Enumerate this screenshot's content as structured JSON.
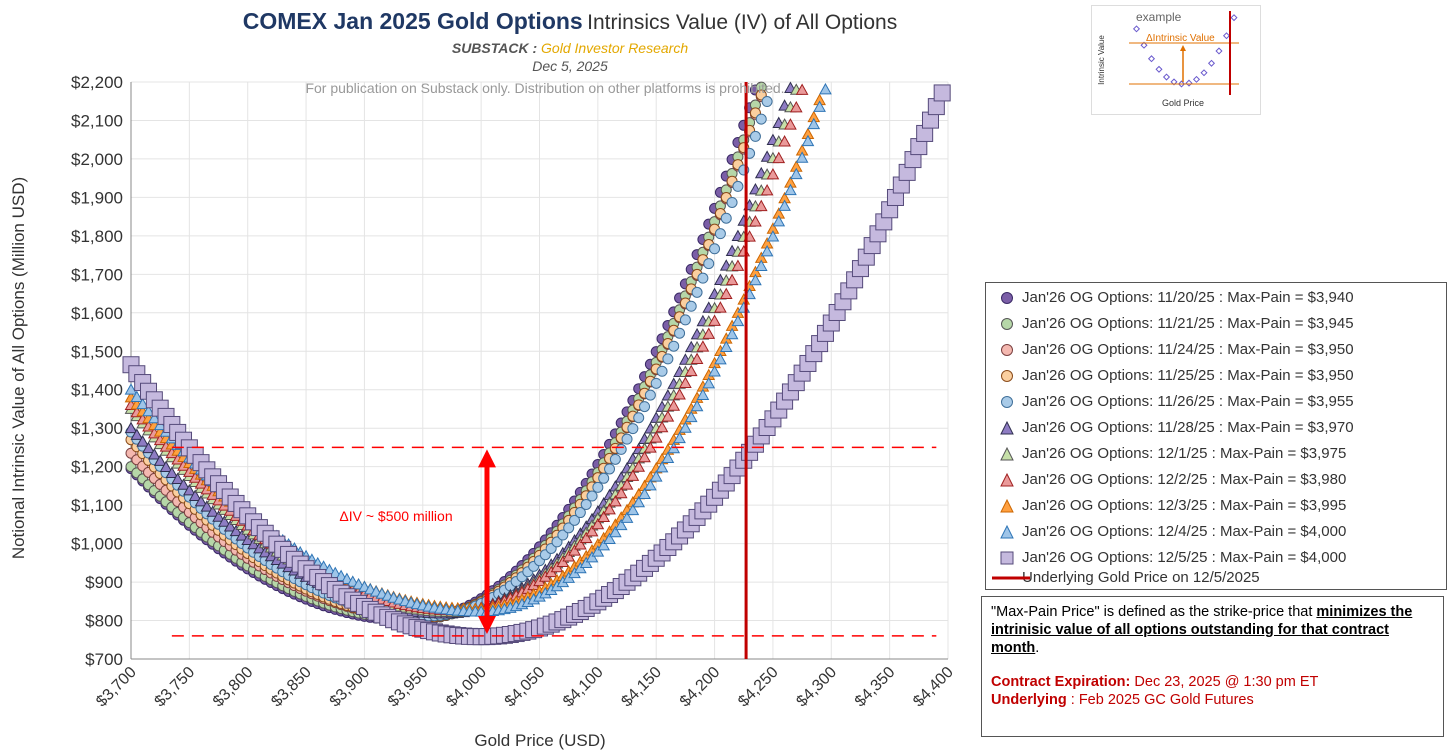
{
  "header": {
    "title_main": "COMEX Jan 2025 Gold Options",
    "title_rest": "Intrinsics Value (IV) of All Options",
    "substack_label": "SUBSTACK :",
    "substack_name": "Gold Investor Research",
    "date": "Dec 5, 2025",
    "notice": "For publication on Substack only. Distribution on other platforms is prohibited."
  },
  "annotation": {
    "delta_label": "ΔIV ~ $500 million"
  },
  "legend": {
    "items": [
      {
        "label": "Jan'26 OG Options: 11/20/25 : Max-Pain = $3,940"
      },
      {
        "label": "Jan'26 OG Options: 11/21/25 : Max-Pain = $3,945"
      },
      {
        "label": "Jan'26 OG Options: 11/24/25 : Max-Pain = $3,950"
      },
      {
        "label": "Jan'26 OG Options: 11/25/25 : Max-Pain = $3,950"
      },
      {
        "label": "Jan'26 OG Options: 11/26/25 : Max-Pain = $3,955"
      },
      {
        "label": "Jan'26 OG Options: 11/28/25 : Max-Pain = $3,970"
      },
      {
        "label": "Jan'26 OG Options: 12/1/25 : Max-Pain = $3,975"
      },
      {
        "label": "Jan'26 OG Options: 12/2/25 : Max-Pain = $3,980"
      },
      {
        "label": "Jan'26 OG Options: 12/3/25 : Max-Pain = $3,995"
      },
      {
        "label": "Jan'26 OG Options: 12/4/25 : Max-Pain = $4,000"
      },
      {
        "label": "Jan'26 OG Options: 12/5/25 : Max-Pain = $4,000"
      },
      {
        "label": "Underlying Gold Price on 12/5/2025"
      }
    ]
  },
  "note": {
    "line1_pre": "\"Max-Pain Price\" is defined as the strike-price that ",
    "line1_u": "minimizes the intrinisic value of all options outstanding for that contract month",
    "line1_post": ".",
    "expiry_label": "Contract Expiration:",
    "expiry_value": " Dec 23, 2025 @ 1:30 pm ET",
    "underlying_label": "Underlying",
    "underlying_value": " : Feb 2025 GC Gold Futures"
  },
  "inset": {
    "title": "example",
    "ylabel": "Intrinsic Value",
    "xlabel": "Gold Price",
    "delta_label": "ΔIntrinsic Value"
  },
  "chart_data": {
    "type": "scatter",
    "title": "COMEX Jan 2025 Gold Options Intrinsics Value (IV) of All Options",
    "xlabel": "Gold Price (USD)",
    "ylabel": "Notional Intrinsic Value of All Options (Million USD)",
    "xlim": [
      3700,
      4400
    ],
    "ylim": [
      700,
      2200
    ],
    "x_ticks": [
      "$3,700",
      "$3,750",
      "$3,800",
      "$3,850",
      "$3,900",
      "$3,950",
      "$4,000",
      "$4,050",
      "$4,100",
      "$4,150",
      "$4,200",
      "$4,250",
      "$4,300",
      "$4,350",
      "$4,400"
    ],
    "y_ticks": [
      "$700",
      "$800",
      "$900",
      "$1,000",
      "$1,100",
      "$1,200",
      "$1,300",
      "$1,400",
      "$1,500",
      "$1,600",
      "$1,700",
      "$1,800",
      "$1,900",
      "$2,000",
      "$2,100",
      "$2,200"
    ],
    "x_step": 5,
    "series": [
      {
        "name": "11/20/25",
        "max_pain": 3940,
        "marker": "circle",
        "fill": "#7b5ea7",
        "stroke": "#3a2a66",
        "x_min": 3700,
        "x_max": 4360,
        "y_min": 800,
        "y_left": 1195,
        "a_right": 0.01585
      },
      {
        "name": "11/21/25",
        "max_pain": 3945,
        "marker": "circle",
        "fill": "#b6d7a8",
        "stroke": "#555555",
        "x_min": 3700,
        "x_max": 4360,
        "y_min": 803,
        "y_left": 1200,
        "a_right": 0.0159
      },
      {
        "name": "11/24/25",
        "max_pain": 3950,
        "marker": "circle",
        "fill": "#f4b8b0",
        "stroke": "#7a4040",
        "x_min": 3700,
        "x_max": 4360,
        "y_min": 808,
        "y_left": 1235,
        "a_right": 0.0161
      },
      {
        "name": "11/25/25",
        "max_pain": 3950,
        "marker": "circle",
        "fill": "#fbcf9f",
        "stroke": "#8a4b1a",
        "x_min": 3700,
        "x_max": 4360,
        "y_min": 808,
        "y_left": 1270,
        "a_right": 0.01615
      },
      {
        "name": "11/26/25",
        "max_pain": 3955,
        "marker": "circle",
        "fill": "#a9cbe8",
        "stroke": "#3f6f99",
        "x_min": 3700,
        "x_max": 4360,
        "y_min": 812,
        "y_left": 1290,
        "a_right": 0.0159
      },
      {
        "name": "11/28/25",
        "max_pain": 3970,
        "marker": "triangle",
        "fill": "#8e7cc3",
        "stroke": "#2f2f4f",
        "x_min": 3700,
        "x_max": 4365,
        "y_min": 818,
        "y_left": 1300,
        "a_right": 0.0157
      },
      {
        "name": "12/1/25",
        "max_pain": 3975,
        "marker": "triangle",
        "fill": "#c6e0a8",
        "stroke": "#555555",
        "x_min": 3700,
        "x_max": 4365,
        "y_min": 822,
        "y_left": 1350,
        "a_right": 0.0156
      },
      {
        "name": "12/2/25",
        "max_pain": 3980,
        "marker": "triangle",
        "fill": "#ea9a9a",
        "stroke": "#a02020",
        "x_min": 3700,
        "x_max": 4365,
        "y_min": 826,
        "y_left": 1360,
        "a_right": 0.01555
      },
      {
        "name": "12/3/25",
        "max_pain": 3995,
        "marker": "triangle",
        "fill": "#ffa040",
        "stroke": "#cc6600",
        "x_min": 3700,
        "x_max": 4365,
        "y_min": 830,
        "y_left": 1380,
        "a_right": 0.0152
      },
      {
        "name": "12/4/25",
        "max_pain": 4000,
        "marker": "triangle",
        "fill": "#9fc5e8",
        "stroke": "#2e75b6",
        "x_min": 3700,
        "x_max": 4365,
        "y_min": 823,
        "y_left": 1400,
        "a_right": 0.0156
      },
      {
        "name": "12/5/25",
        "max_pain": 4000,
        "marker": "square",
        "fill": "#c5b9de",
        "stroke": "#554a7a",
        "x_min": 3700,
        "x_max": 4395,
        "y_min": 758,
        "y_left": 1465,
        "a_right": 0.00906
      }
    ],
    "underlying_price": 4227,
    "underlying_label": "Underlying Gold Price on 12/5/2025",
    "hlines": [
      1250,
      760
    ],
    "delta_arrow": {
      "x": 4005,
      "y_top": 1245,
      "y_bottom": 765,
      "label": "ΔIV ~ $500 million"
    }
  }
}
